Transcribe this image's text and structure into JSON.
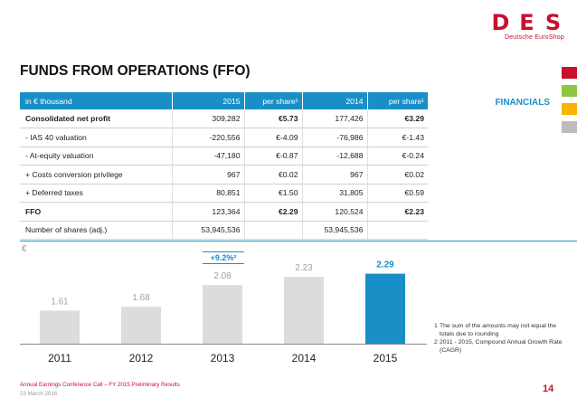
{
  "logo": {
    "mark": "DES",
    "sub": "Deutsche EuroShop"
  },
  "title": "FUNDS FROM OPERATIONS (FFO)",
  "section_tab": "FINANCIALS",
  "side_colors": [
    "#c8102e",
    "#8dc63f",
    "#f7b500",
    "#bdbdbd"
  ],
  "table": {
    "headers": [
      "in € thousand",
      "2015",
      "per share¹",
      "2014",
      "per share¹"
    ],
    "rows": [
      {
        "label": "Consolidated net profit",
        "v2015": "309,282",
        "ps2015": "€5.73",
        "v2014": "177,426",
        "ps2014": "€3.29",
        "bold": true
      },
      {
        "label": "- IAS 40 valuation",
        "v2015": "-220,556",
        "ps2015": "€-4.09",
        "v2014": "-76,986",
        "ps2014": "€-1.43",
        "bold": false
      },
      {
        "label": "- At-equity valuation",
        "v2015": "-47,180",
        "ps2015": "€-0.87",
        "v2014": "-12,688",
        "ps2014": "€-0.24",
        "bold": false
      },
      {
        "label": "+ Costs conversion privilege",
        "v2015": "967",
        "ps2015": "€0.02",
        "v2014": "967",
        "ps2014": "€0.02",
        "bold": false
      },
      {
        "label": "+ Deferred taxes",
        "v2015": "80,851",
        "ps2015": "€1.50",
        "v2014": "31,805",
        "ps2014": "€0.59",
        "bold": false
      },
      {
        "label": "FFO",
        "v2015": "123,364",
        "ps2015": "€2.29",
        "v2014": "120,524",
        "ps2014": "€2.23",
        "bold": true
      },
      {
        "label": "Number of shares (adj.)",
        "v2015": "53,945,536",
        "ps2015": "",
        "v2014": "53,945,536",
        "ps2014": "",
        "bold": false
      }
    ]
  },
  "chart_unit": "€",
  "cagr_label": "+9.2%²",
  "chart_data": {
    "type": "bar",
    "categories": [
      "2011",
      "2012",
      "2013",
      "2014",
      "2015"
    ],
    "values": [
      1.61,
      1.68,
      2.08,
      2.23,
      2.29
    ],
    "value_labels": [
      "1.61",
      "1.68",
      "2.08",
      "2.23",
      "2.29"
    ],
    "colors": [
      "#dcdcdc",
      "#dcdcdc",
      "#dcdcdc",
      "#dcdcdc",
      "#1a8fc7"
    ],
    "label_colors": [
      "#a0a0a0",
      "#a0a0a0",
      "#a0a0a0",
      "#a0a0a0",
      "#1a8fc7"
    ],
    "ylabel": "€",
    "grid": false
  },
  "footnotes": [
    {
      "mark": "1",
      "text": "The sum of the amounts may not equal the totals due to rounding"
    },
    {
      "mark": "2",
      "text": "2011 - 2015, Compound Annual Growth Rate (CAGR)"
    }
  ],
  "footer": {
    "line1": "Annual Earnings Conference Call – FY 2015 Preliminary Results",
    "line2": "23 March 2016",
    "page": "14"
  }
}
